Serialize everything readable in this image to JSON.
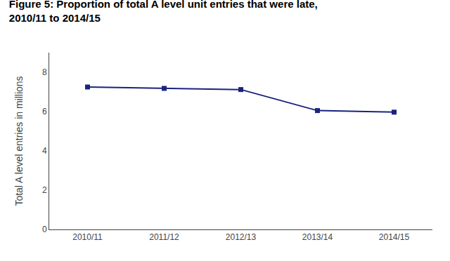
{
  "chart_data": {
    "type": "line",
    "title": "Figure 5: Proportion of total A level unit entries that were late, 2010/11 to 2014/15",
    "ylabel": "Total A level entries in millions",
    "categories": [
      "2010/11",
      "2011/12",
      "2012/13",
      "2013/14",
      "2014/15"
    ],
    "values": [
      7.25,
      7.18,
      7.12,
      6.05,
      5.97
    ],
    "color": "#1a237e",
    "marker": "square",
    "ylim": [
      0,
      9
    ],
    "yticks": [
      0,
      2,
      4,
      6,
      8
    ],
    "grid": false
  }
}
